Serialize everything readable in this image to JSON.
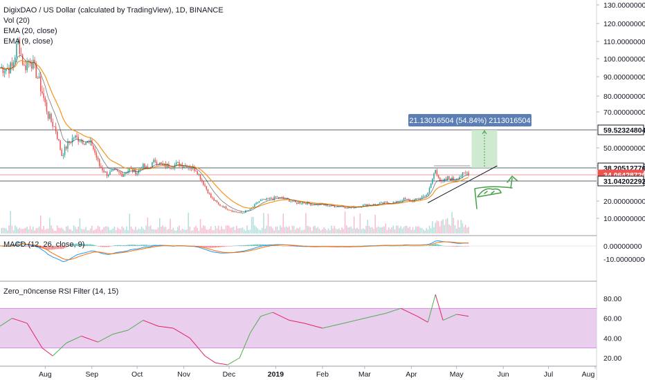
{
  "legend": {
    "title": "DigixDAO / US Dollar (calculated by TradingView), 1D, BINANCE",
    "vol": "Vol (20)",
    "ema20": "EMA (20, close)",
    "ema9": "EMA (9, close)"
  },
  "macd_label": "MACD (12, 26, close, 9)",
  "rsi_label": "Zero_n0ncense RSI Filter (14, 15)",
  "measure_label": "21.13016504 (54.84%) 2113016504",
  "colors": {
    "up": "#26a69a",
    "down": "#ef5350",
    "ema20": "#f7931a",
    "ema9": "#131722",
    "rsi_band": "#e1bee7",
    "macd": "#2196f3",
    "signal": "#ff6d00",
    "measure_box": "#c8e6c9",
    "measure_label_bg": "#5b7fb5",
    "price_tag": "#ef5350",
    "sketch": "#43a047"
  },
  "chart_data": {
    "type": "candlestick",
    "x_ticks": [
      "Aug",
      "Sep",
      "Oct",
      "Nov",
      "Dec",
      "2019",
      "Feb",
      "Mar",
      "Apr",
      "May",
      "Jun",
      "Jul",
      "Aug"
    ],
    "price_axis": [
      "130.00000000",
      "120.00000000",
      "110.00000000",
      "100.00000000",
      "90.00000000",
      "80.00000000",
      "70.00000000",
      "60.00000000",
      "50.00000000",
      "40.00000000",
      "30.00000000",
      "20.00000000",
      "10.00000000"
    ],
    "macd_axis": [
      "0.00000000",
      "-10.00000000"
    ],
    "rsi_axis": [
      "80.00",
      "60.00",
      "40.00",
      "20.00"
    ],
    "rsi_band": [
      30,
      70
    ],
    "horizontal_levels": [
      {
        "value": "59.52324804",
        "style": "tag-dark"
      },
      {
        "value": "38.20512770",
        "style": "tag-dark"
      },
      {
        "value": "34.06428720",
        "style": "tag-red"
      },
      {
        "value": "31.04202292",
        "style": "tag-dark"
      }
    ],
    "measure": {
      "from": 38.2,
      "to": 59.5,
      "change": "21.13016504 (54.84%) 2113016504"
    },
    "close_path": [
      [
        "2018-07-10",
        95
      ],
      [
        "2018-07-14",
        110
      ],
      [
        "2018-07-18",
        95
      ],
      [
        "2018-07-22",
        100
      ],
      [
        "2018-07-26",
        92
      ],
      [
        "2018-07-30",
        82
      ],
      [
        "2018-08-03",
        68
      ],
      [
        "2018-08-08",
        60
      ],
      [
        "2018-08-12",
        46
      ],
      [
        "2018-08-16",
        52
      ],
      [
        "2018-08-20",
        56
      ],
      [
        "2018-08-26",
        54
      ],
      [
        "2018-09-01",
        52
      ],
      [
        "2018-09-06",
        40
      ],
      [
        "2018-09-11",
        35
      ],
      [
        "2018-09-16",
        37
      ],
      [
        "2018-09-21",
        35
      ],
      [
        "2018-09-26",
        38
      ],
      [
        "2018-10-01",
        36
      ],
      [
        "2018-10-04",
        40
      ],
      [
        "2018-10-08",
        38
      ],
      [
        "2018-10-13",
        43
      ],
      [
        "2018-10-18",
        40
      ],
      [
        "2018-10-23",
        40
      ],
      [
        "2018-10-28",
        41
      ],
      [
        "2018-11-03",
        40
      ],
      [
        "2018-11-09",
        38
      ],
      [
        "2018-11-14",
        30
      ],
      [
        "2018-11-19",
        22
      ],
      [
        "2018-11-24",
        18
      ],
      [
        "2018-11-29",
        16
      ],
      [
        "2018-12-04",
        14
      ],
      [
        "2018-12-09",
        13
      ],
      [
        "2018-12-15",
        15
      ],
      [
        "2018-12-21",
        20
      ],
      [
        "2018-12-27",
        21
      ],
      [
        "2019-01-02",
        22
      ],
      [
        "2019-01-08",
        21
      ],
      [
        "2019-01-14",
        19
      ],
      [
        "2019-01-20",
        19
      ],
      [
        "2019-01-26",
        18
      ],
      [
        "2019-02-01",
        18
      ],
      [
        "2019-02-07",
        17
      ],
      [
        "2019-02-13",
        17
      ],
      [
        "2019-02-19",
        16
      ],
      [
        "2019-02-25",
        17
      ],
      [
        "2019-03-03",
        18
      ],
      [
        "2019-03-09",
        18
      ],
      [
        "2019-03-15",
        19
      ],
      [
        "2019-03-21",
        19
      ],
      [
        "2019-03-27",
        21
      ],
      [
        "2019-04-02",
        20
      ],
      [
        "2019-04-07",
        22
      ],
      [
        "2019-04-12",
        24
      ],
      [
        "2019-04-17",
        38
      ],
      [
        "2019-04-21",
        30
      ],
      [
        "2019-04-25",
        33
      ],
      [
        "2019-04-29",
        32
      ],
      [
        "2019-05-03",
        34
      ],
      [
        "2019-05-08",
        36
      ]
    ],
    "rsi_path": [
      [
        "2018-07-02",
        52
      ],
      [
        "2018-07-10",
        60
      ],
      [
        "2018-07-20",
        55
      ],
      [
        "2018-07-30",
        30
      ],
      [
        "2018-08-06",
        22
      ],
      [
        "2018-08-15",
        35
      ],
      [
        "2018-08-25",
        42
      ],
      [
        "2018-09-05",
        36
      ],
      [
        "2018-09-15",
        44
      ],
      [
        "2018-09-25",
        48
      ],
      [
        "2018-10-05",
        58
      ],
      [
        "2018-10-15",
        52
      ],
      [
        "2018-10-25",
        50
      ],
      [
        "2018-11-05",
        40
      ],
      [
        "2018-11-15",
        22
      ],
      [
        "2018-11-22",
        15
      ],
      [
        "2018-11-30",
        13
      ],
      [
        "2018-12-08",
        20
      ],
      [
        "2018-12-15",
        45
      ],
      [
        "2018-12-22",
        62
      ],
      [
        "2018-12-30",
        66
      ],
      [
        "2019-01-10",
        58
      ],
      [
        "2019-01-20",
        55
      ],
      [
        "2019-02-01",
        50
      ],
      [
        "2019-02-15",
        55
      ],
      [
        "2019-03-01",
        60
      ],
      [
        "2019-03-15",
        65
      ],
      [
        "2019-03-25",
        70
      ],
      [
        "2019-04-05",
        62
      ],
      [
        "2019-04-12",
        56
      ],
      [
        "2019-04-17",
        84
      ],
      [
        "2019-04-22",
        58
      ],
      [
        "2019-05-01",
        64
      ],
      [
        "2019-05-09",
        62
      ]
    ]
  }
}
